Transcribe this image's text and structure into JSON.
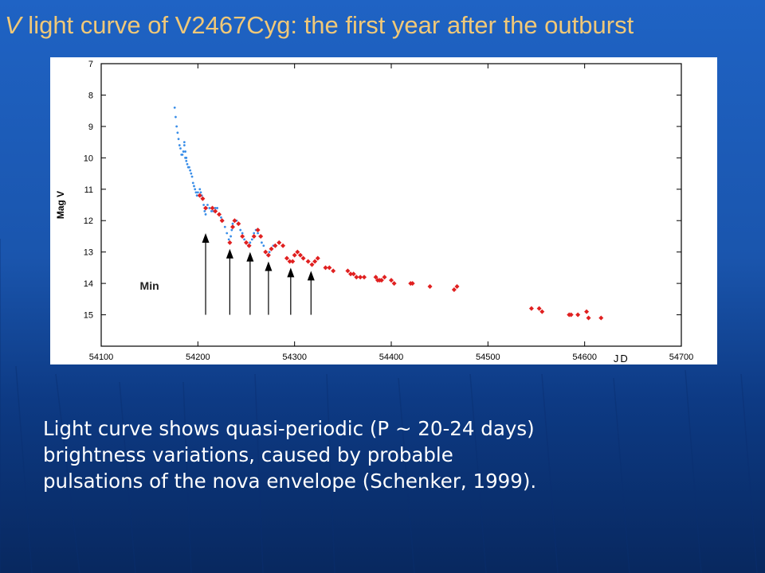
{
  "slide": {
    "title_prefix": "V",
    "title_rest": " light curve of V2467Cyg: the first year after the outburst",
    "caption_lines": [
      "Light curve shows quasi-periodic (P ~ 20-24 days)",
      "brightness variations, caused by probable",
      "pulsations of the nova envelope (Schenker, 1999)."
    ],
    "colors": {
      "title": "#f0c878",
      "caption": "#ffffff",
      "background": "#1a55ad"
    }
  },
  "chart_data": {
    "type": "scatter",
    "title": "",
    "xlabel": "JD",
    "ylabel": "Mag V",
    "xlim": [
      54100,
      54700
    ],
    "ylim": [
      7,
      16
    ],
    "y_inverted": true,
    "grid": false,
    "x_ticks": [
      54100,
      54200,
      54300,
      54400,
      54500,
      54600,
      54700
    ],
    "y_ticks": [
      7,
      8,
      9,
      10,
      11,
      12,
      13,
      14,
      15
    ],
    "annotation": "Min",
    "arrow_jd": [
      54208,
      54233,
      54254,
      54273,
      54296,
      54317
    ],
    "arrow_tip_mag": [
      12.4,
      12.9,
      13.0,
      13.3,
      13.5,
      13.6
    ],
    "arrow_base_mag": 15,
    "series": [
      {
        "color": "#3a8ee8",
        "marker": "dot",
        "points": [
          [
            54176,
            8.4
          ],
          [
            54177,
            8.7
          ],
          [
            54178,
            9.0
          ],
          [
            54179,
            9.2
          ],
          [
            54180,
            9.4
          ],
          [
            54181,
            9.6
          ],
          [
            54182,
            9.7
          ],
          [
            54183,
            9.9
          ],
          [
            54184,
            9.9
          ],
          [
            54185,
            9.8
          ],
          [
            54186,
            9.5
          ],
          [
            54186,
            9.6
          ],
          [
            54187,
            9.8
          ],
          [
            54187,
            10.0
          ],
          [
            54188,
            10.0
          ],
          [
            54188,
            10.1
          ],
          [
            54189,
            10.2
          ],
          [
            54190,
            10.3
          ],
          [
            54191,
            10.3
          ],
          [
            54192,
            10.4
          ],
          [
            54193,
            10.5
          ],
          [
            54194,
            10.6
          ],
          [
            54195,
            10.8
          ],
          [
            54196,
            10.9
          ],
          [
            54197,
            11.0
          ],
          [
            54198,
            11.1
          ],
          [
            54199,
            11.2
          ],
          [
            54200,
            11.1
          ],
          [
            54201,
            11.2
          ],
          [
            54202,
            11.0
          ],
          [
            54203,
            11.1
          ],
          [
            54204,
            11.2
          ],
          [
            54205,
            11.3
          ],
          [
            54206,
            11.5
          ],
          [
            54207,
            11.7
          ],
          [
            54208,
            11.8
          ],
          [
            54209,
            11.6
          ],
          [
            54210,
            11.5
          ],
          [
            54212,
            11.6
          ],
          [
            54214,
            11.7
          ],
          [
            54216,
            11.7
          ],
          [
            54218,
            11.6
          ],
          [
            54220,
            11.6
          ],
          [
            54222,
            11.8
          ],
          [
            54224,
            11.9
          ],
          [
            54226,
            12.0
          ],
          [
            54228,
            12.2
          ],
          [
            54230,
            12.4
          ],
          [
            54232,
            12.6
          ],
          [
            54233,
            12.7
          ],
          [
            54234,
            12.5
          ],
          [
            54235,
            12.3
          ],
          [
            54236,
            12.1
          ],
          [
            54238,
            12.0
          ],
          [
            54240,
            12.0
          ],
          [
            54242,
            12.1
          ],
          [
            54244,
            12.3
          ],
          [
            54246,
            12.4
          ],
          [
            54248,
            12.6
          ],
          [
            54250,
            12.7
          ],
          [
            54252,
            12.8
          ],
          [
            54254,
            12.7
          ],
          [
            54256,
            12.6
          ],
          [
            54258,
            12.4
          ],
          [
            54260,
            12.3
          ],
          [
            54262,
            12.4
          ],
          [
            54264,
            12.5
          ],
          [
            54266,
            12.7
          ],
          [
            54268,
            12.8
          ],
          [
            54270,
            13.0
          ],
          [
            54272,
            13.1
          ],
          [
            54274,
            13.0
          ],
          [
            54276,
            12.9
          ],
          [
            54278,
            12.8
          ]
        ]
      },
      {
        "color": "#e02020",
        "marker": "diamond",
        "points": [
          [
            54202,
            11.2
          ],
          [
            54205,
            11.3
          ],
          [
            54208,
            11.6
          ],
          [
            54215,
            11.6
          ],
          [
            54218,
            11.7
          ],
          [
            54222,
            11.8
          ],
          [
            54225,
            12.0
          ],
          [
            54233,
            12.7
          ],
          [
            54236,
            12.2
          ],
          [
            54238,
            12.0
          ],
          [
            54242,
            12.1
          ],
          [
            54246,
            12.5
          ],
          [
            54250,
            12.7
          ],
          [
            54253,
            12.8
          ],
          [
            54258,
            12.5
          ],
          [
            54262,
            12.3
          ],
          [
            54265,
            12.5
          ],
          [
            54270,
            13.0
          ],
          [
            54273,
            13.1
          ],
          [
            54276,
            12.9
          ],
          [
            54280,
            12.8
          ],
          [
            54284,
            12.7
          ],
          [
            54288,
            12.8
          ],
          [
            54292,
            13.2
          ],
          [
            54295,
            13.3
          ],
          [
            54298,
            13.3
          ],
          [
            54300,
            13.1
          ],
          [
            54303,
            13.0
          ],
          [
            54306,
            13.1
          ],
          [
            54309,
            13.2
          ],
          [
            54314,
            13.3
          ],
          [
            54318,
            13.4
          ],
          [
            54321,
            13.3
          ],
          [
            54324,
            13.2
          ],
          [
            54332,
            13.5
          ],
          [
            54336,
            13.5
          ],
          [
            54340,
            13.6
          ],
          [
            54355,
            13.6
          ],
          [
            54358,
            13.7
          ],
          [
            54361,
            13.7
          ],
          [
            54364,
            13.8
          ],
          [
            54368,
            13.8
          ],
          [
            54372,
            13.8
          ],
          [
            54384,
            13.8
          ],
          [
            54386,
            13.9
          ],
          [
            54388,
            13.9
          ],
          [
            54390,
            13.9
          ],
          [
            54393,
            13.8
          ],
          [
            54400,
            13.9
          ],
          [
            54403,
            14.0
          ],
          [
            54420,
            14.0
          ],
          [
            54422,
            14.0
          ],
          [
            54440,
            14.1
          ],
          [
            54465,
            14.2
          ],
          [
            54468,
            14.1
          ],
          [
            54545,
            14.8
          ],
          [
            54553,
            14.8
          ],
          [
            54556,
            14.9
          ],
          [
            54584,
            15.0
          ],
          [
            54586,
            15.0
          ],
          [
            54593,
            15.0
          ],
          [
            54602,
            14.9
          ],
          [
            54604,
            15.1
          ],
          [
            54617,
            15.1
          ]
        ]
      }
    ]
  }
}
